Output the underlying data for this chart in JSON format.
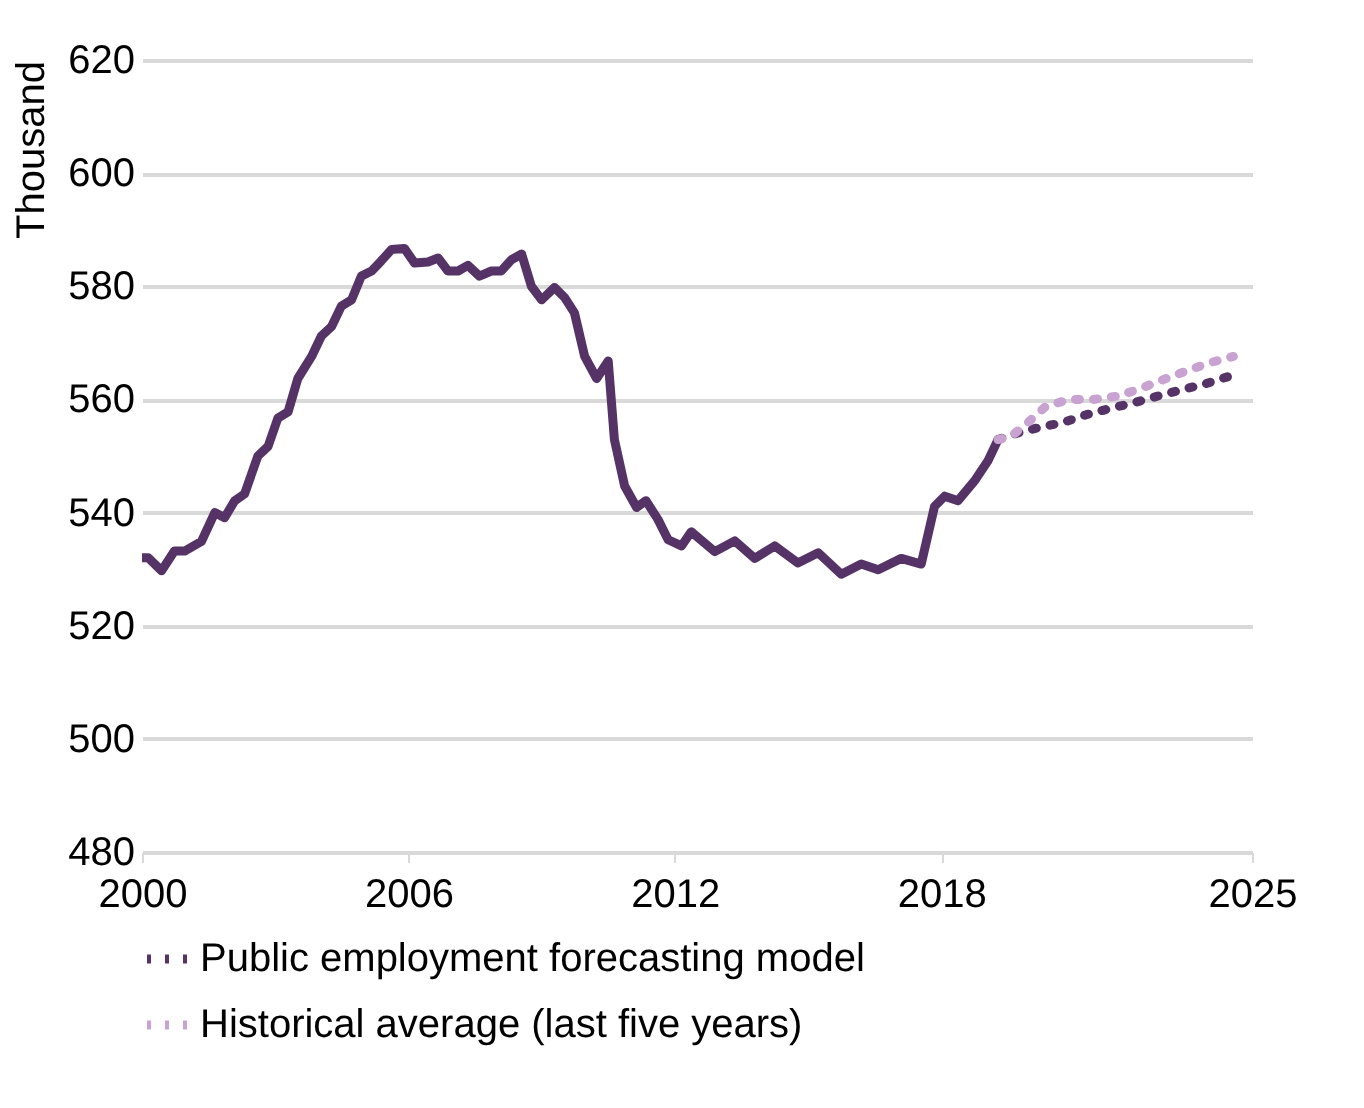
{
  "chart_data": {
    "type": "line",
    "ylabel": "Thousand",
    "xlim": [
      2000,
      2025
    ],
    "xticks": [
      2000,
      2006,
      2012,
      2018,
      2025
    ],
    "ylim": [
      480,
      620
    ],
    "yticks": [
      480,
      500,
      520,
      540,
      560,
      580,
      600,
      620
    ],
    "grid": "y",
    "legend": "bottom",
    "marker": "none",
    "series": [
      {
        "color": "#553366",
        "line_style": "solid",
        "x": [
          2000,
          2000.14,
          2000.44,
          2000.73,
          2000.96,
          2001.34,
          2001.64,
          2001.86,
          2002.09,
          2002.31,
          2002.61,
          2002.84,
          2003.06,
          2003.29,
          2003.51,
          2003.82,
          2004.04,
          2004.27,
          2004.49,
          2004.72,
          2004.94,
          2005.17,
          2005.39,
          2005.62,
          2005.91,
          2006.14,
          2006.44,
          2006.67,
          2006.89,
          2007.12,
          2007.34,
          2007.6,
          2007.87,
          2008.09,
          2008.32,
          2008.55,
          2008.77,
          2009.0,
          2009.29,
          2009.52,
          2009.74,
          2009.97,
          2010.24,
          2010.5,
          2010.64,
          2010.87,
          2011.14,
          2011.35,
          2011.62,
          2011.85,
          2012.15,
          2012.37,
          2012.9,
          2013.35,
          2013.8,
          2014.25,
          2014.77,
          2015.23,
          2015.75,
          2016.2,
          2016.58,
          2017.1,
          2017.55,
          2017.85,
          2018.08,
          2018.38,
          2018.75,
          2019.05,
          2019.28
        ],
        "values": [
          532.0,
          532.0,
          529.7,
          533.2,
          533.2,
          534.9,
          540.0,
          539.1,
          542.1,
          543.3,
          550.0,
          551.7,
          556.7,
          557.8,
          563.7,
          567.6,
          571.2,
          572.9,
          576.5,
          577.6,
          581.8,
          582.7,
          584.5,
          586.5,
          586.7,
          584.1,
          584.3,
          585.0,
          582.7,
          582.7,
          583.7,
          581.8,
          582.7,
          582.7,
          584.7,
          585.7,
          580.0,
          577.6,
          579.8,
          578.0,
          575.3,
          567.6,
          563.7,
          566.8,
          552.9,
          544.7,
          540.9,
          542.1,
          538.8,
          535.2,
          534.1,
          536.6,
          533.1,
          535.0,
          531.9,
          534.1,
          531.1,
          532.9,
          529.1,
          530.9,
          529.9,
          531.9,
          530.9,
          541.1,
          542.9,
          542.1,
          545.6,
          549.1,
          552.9
        ]
      },
      {
        "name": "Public employment forecasting model",
        "color": "#553366",
        "line_style": "dotted",
        "x": [
          2019.28,
          2019.65,
          2020.18,
          2020.73,
          2021.27,
          2021.8,
          2022.33,
          2022.88,
          2023.41,
          2023.93,
          2024.49
        ],
        "values": [
          552.9,
          553.9,
          555.0,
          555.9,
          557.3,
          558.4,
          559.4,
          560.6,
          561.7,
          562.7,
          564.1
        ]
      },
      {
        "name": "Historical average (last five years)",
        "color": "#c8a2d0",
        "line_style": "dotted",
        "x": [
          2019.28,
          2019.58,
          2019.95,
          2020.36,
          2020.89,
          2021.43,
          2021.98,
          2022.51,
          2023.0,
          2023.51,
          2024.05,
          2024.58
        ],
        "values": [
          552.9,
          553.5,
          555.9,
          558.8,
          560.0,
          560.0,
          560.6,
          562.0,
          563.5,
          565.0,
          566.5,
          567.6
        ]
      }
    ]
  }
}
